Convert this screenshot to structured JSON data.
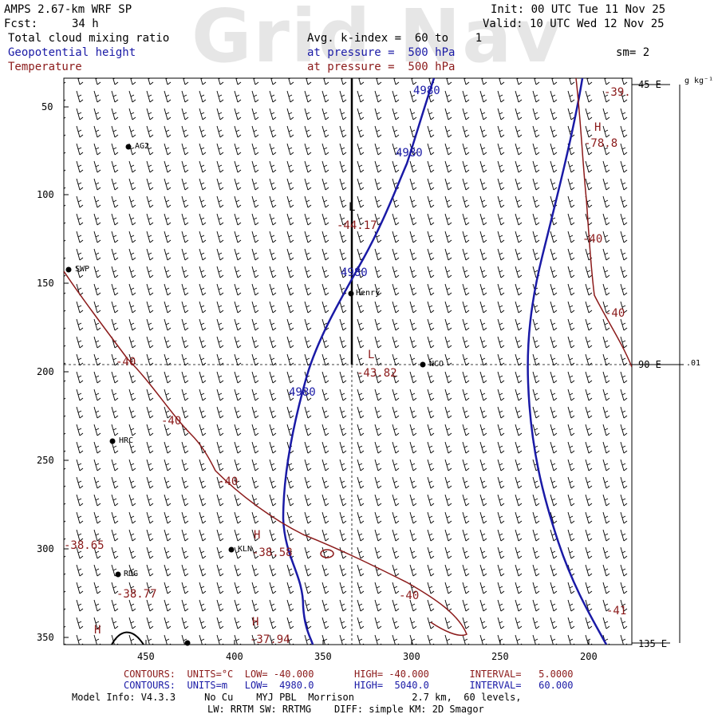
{
  "watermark": "Grid Nav",
  "header": {
    "model": "AMPS 2.67-km WRF SP",
    "fcst_label": "Fcst:",
    "fcst_value": "34 h",
    "init": "Init: 00 UTC Tue 11 Nov 25",
    "valid": "Valid: 10 UTC Wed 12 Nov 25",
    "field_shaded": "Total cloud mixing ratio",
    "field_blue": "Geopotential height",
    "field_red": "Temperature",
    "avg_line": "Avg. k-index =  60 to    1",
    "pressure_blue": "at pressure =  500 hPa",
    "pressure_red": "at pressure =  500 hPa",
    "smoothing": "sm= 2"
  },
  "colorbar": {
    "units": "g kg⁻¹",
    "tick": ".01"
  },
  "axes": {
    "y_ticks": [
      "50",
      "100",
      "150",
      "200",
      "250",
      "300",
      "350"
    ],
    "x_ticks": [
      "450",
      "400",
      "350",
      "300",
      "250",
      "200"
    ],
    "right_labels": [
      "45 E",
      "90 E",
      "135 E"
    ]
  },
  "stations": [
    {
      "name": "AG2"
    },
    {
      "name": "SWP"
    },
    {
      "name": "Henry"
    },
    {
      "name": "NCO"
    },
    {
      "name": "HRC"
    },
    {
      "name": "KLN"
    },
    {
      "name": "RDG"
    }
  ],
  "contour_labels": {
    "height": [
      "4980",
      "4980",
      "4980",
      "4980"
    ],
    "temperature": [
      "-40",
      "-40",
      "-40",
      "-40",
      "-40",
      "-40",
      "-41",
      "-39."
    ],
    "extrema": [
      "-44.17",
      "-43.82",
      "-38.65",
      "-38.58",
      "-38.77",
      "-37.94",
      "-78.8"
    ],
    "markers": [
      "L",
      "L",
      "H",
      "H",
      "H",
      "H"
    ]
  },
  "footer": {
    "red_line": "CONTOURS:  UNITS=°C  LOW= -40.000       HIGH= -40.000       INTERVAL=   5.0000",
    "blue_line": "CONTOURS:  UNITS=m   LOW=  4980.0       HIGH=  5040.0       INTERVAL=   60.000",
    "model_info": "Model Info: V4.3.3     No Cu    MYJ PBL  Morrison          2.7 km,  60 levels,",
    "physics": "LW: RRTM SW: RRTMG    DIFF: simple KM: 2D Smagor"
  },
  "colors": {
    "height": "#1a1aa6",
    "temperature": "#8b1a1a",
    "frame": "#000000"
  }
}
